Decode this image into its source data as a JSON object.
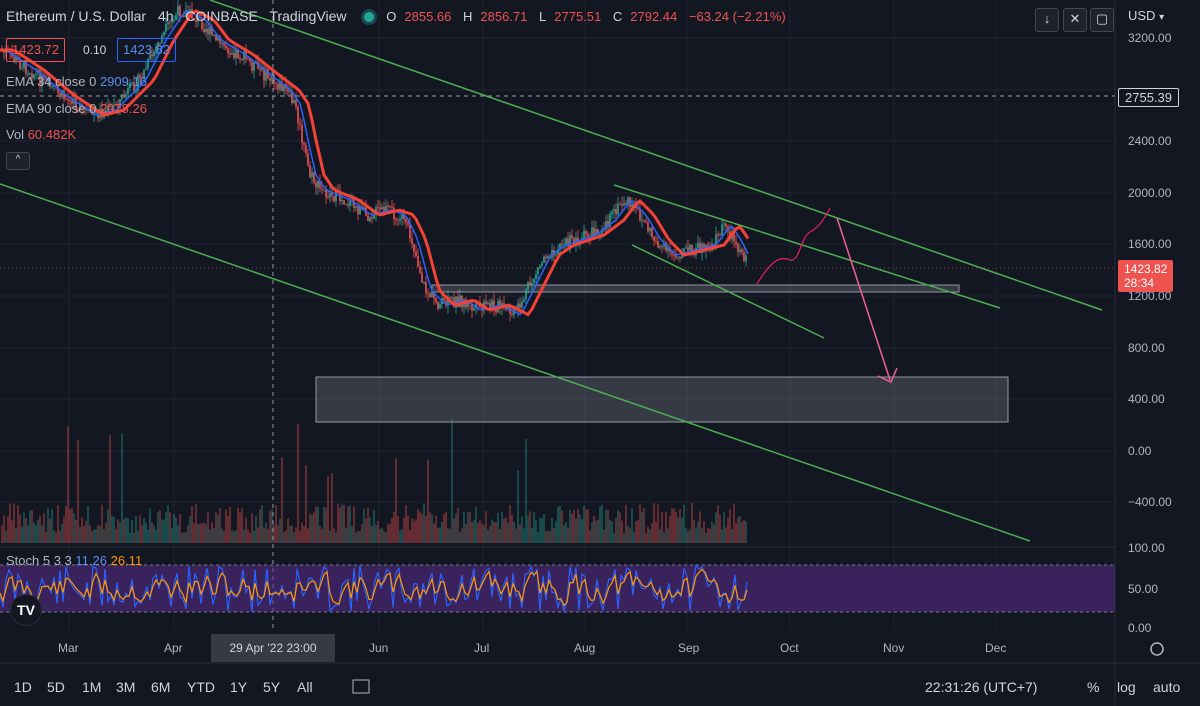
{
  "header": {
    "symbol": "Ethereum / U.S. Dollar",
    "interval": "4h",
    "exchange": "COINBASE",
    "publisher": "TradingView",
    "ohlc": {
      "o_label": "O",
      "o_value": "2855.66",
      "h_label": "H",
      "h_value": "2856.71",
      "l_label": "L",
      "l_value": "2775.51",
      "c_label": "C",
      "c_value": "2792.44",
      "change": "−63.24 (−2.21%)"
    }
  },
  "trade": {
    "sell_price": "1423.72",
    "spread": "0.10",
    "buy_price": "1423.82"
  },
  "indicators": {
    "ema34_label": "EMA 34 close 0",
    "ema34_value": "2909.16",
    "ema90_label": "EMA 90 close 0",
    "ema90_value": "2978.26",
    "vol_label": "Vol",
    "vol_value": "60.482K",
    "stoch_label": "Stoch 5 3 3",
    "stoch_k": "11.26",
    "stoch_d": "26.11"
  },
  "top_right": {
    "currency": "USD",
    "currency_icon": "chevron-down-icon"
  },
  "price_axis": [
    "3200.00",
    "2400.00",
    "2000.00",
    "1600.00",
    "1200.00",
    "800.00",
    "400.00",
    "0.00",
    "−400.00"
  ],
  "crosshair_price": "2755.39",
  "last_price": {
    "price": "1423.82",
    "countdown": "28:34"
  },
  "stoch_axis": [
    "100.00",
    "50.00",
    "0.00"
  ],
  "time_axis": [
    "Mar",
    "Apr",
    "Jun",
    "Jul",
    "Aug",
    "Sep",
    "Oct",
    "Nov",
    "Dec"
  ],
  "crosshair_time": "29 Apr '22  23:00",
  "bottom_bar": {
    "ranges": [
      "1D",
      "5D",
      "1M",
      "3M",
      "6M",
      "YTD",
      "1Y",
      "5Y",
      "All"
    ],
    "clock": "22:31:26 (UTC+7)",
    "percent": "%",
    "log": "log",
    "auto": "auto"
  },
  "colors": {
    "background": "#131722",
    "up": "#26a69a",
    "down": "#ef5350",
    "ema34": "#2962ff",
    "ema90": "#f44336",
    "trendline": "#4caf50",
    "projection": "#e91e63",
    "stoch_band": "#5b2c8e"
  }
}
